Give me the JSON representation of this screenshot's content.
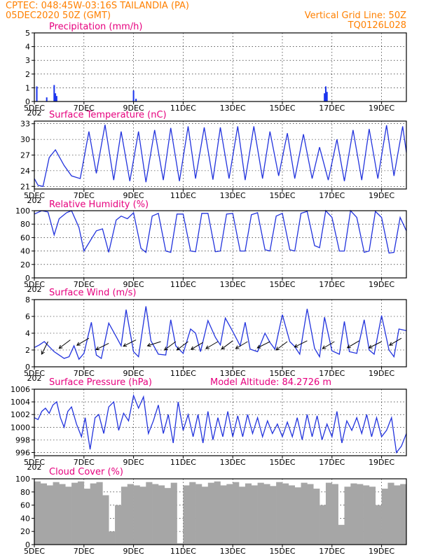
{
  "header": {
    "source_location": "CPTEC:   048:45W-03:16S   TAILANDIA (PA)",
    "run_time": "05DEC2020 50Z (GMT)",
    "grid_note": "Vertical Grid Line: 50Z",
    "code": "TQ0126L028"
  },
  "x_tick_labels": [
    "5DEC",
    "7DEC",
    "9DEC",
    "11DEC",
    "13DEC",
    "15DEC",
    "17DEC",
    "19DEC"
  ],
  "x_tick_days": [
    0,
    2,
    4,
    6,
    8,
    10,
    12,
    14
  ],
  "x_start_stub": "202",
  "colors": {
    "header": "#ff8000",
    "title": "#e6007e",
    "series": "#2233dd",
    "bars": "#1a33ee",
    "cloud": "#a6a6a6"
  },
  "panels": {
    "precipitation": {
      "title": "Precipitation (mm/h)"
    },
    "temperature": {
      "title": "Surface Temperature (nC)"
    },
    "humidity": {
      "title": "Relative Humidity (%)"
    },
    "wind": {
      "title": "Surface Wind (m/s)"
    },
    "pressure": {
      "title": "Surface Pressure (hPa)",
      "altitude": "Model Altitude: 84.2726 m"
    },
    "cloud": {
      "title": "Cloud Cover (%)"
    }
  },
  "chart_data": [
    {
      "type": "bar",
      "name": "precipitation",
      "ylim": [
        0,
        5
      ],
      "yticks": [
        0,
        1,
        2,
        3,
        4,
        5
      ],
      "x": [
        0.1,
        0.5,
        0.8,
        0.85,
        0.9,
        4.0,
        4.1,
        11.7,
        11.75,
        11.8
      ],
      "values": [
        1.1,
        0.3,
        1.2,
        0.6,
        0.4,
        0.8,
        0.2,
        0.6,
        1.1,
        0.7
      ]
    },
    {
      "type": "line",
      "name": "temperature",
      "ylim": [
        20.5,
        33.5
      ],
      "yticks": [
        21,
        24,
        27,
        30,
        33
      ],
      "x": [
        0,
        0.15,
        0.35,
        0.6,
        0.85,
        1.2,
        1.5,
        1.85,
        2.2,
        2.5,
        2.85,
        3.2,
        3.5,
        3.85,
        4.2,
        4.5,
        4.85,
        5.2,
        5.5,
        5.85,
        6.2,
        6.5,
        6.85,
        7.2,
        7.5,
        7.85,
        8.2,
        8.5,
        8.85,
        9.2,
        9.5,
        9.85,
        10.2,
        10.5,
        10.85,
        11.2,
        11.5,
        11.85,
        12.2,
        12.5,
        12.85,
        13.2,
        13.5,
        13.85,
        14.2,
        14.5,
        14.85,
        15.0
      ],
      "values": [
        22.5,
        21.2,
        21.0,
        26.5,
        28.0,
        25.0,
        23.0,
        22.5,
        31.5,
        23.5,
        32.8,
        22.2,
        31.5,
        22.0,
        31.5,
        21.8,
        31.8,
        22.2,
        32.2,
        22.0,
        32.5,
        22.5,
        32.3,
        22.3,
        32.3,
        22.5,
        32.5,
        22.2,
        32.5,
        22.5,
        31.5,
        23.0,
        31.2,
        22.5,
        31.0,
        22.5,
        28.5,
        22.2,
        30.0,
        22.0,
        31.8,
        22.2,
        32.0,
        22.5,
        32.7,
        23.0,
        32.5,
        27.5
      ]
    },
    {
      "type": "line",
      "name": "humidity",
      "ylim": [
        0,
        100
      ],
      "yticks": [
        0,
        20,
        40,
        60,
        80,
        100
      ],
      "x": [
        0,
        0.3,
        0.55,
        0.8,
        1.0,
        1.3,
        1.5,
        1.8,
        2.0,
        2.3,
        2.5,
        2.75,
        3.0,
        3.3,
        3.5,
        3.75,
        4.0,
        4.3,
        4.5,
        4.75,
        5.0,
        5.3,
        5.5,
        5.75,
        6.0,
        6.3,
        6.5,
        6.75,
        7.0,
        7.3,
        7.5,
        7.75,
        8.0,
        8.3,
        8.5,
        8.75,
        9.0,
        9.3,
        9.5,
        9.75,
        10.0,
        10.3,
        10.5,
        10.75,
        11.0,
        11.3,
        11.5,
        11.75,
        12.0,
        12.3,
        12.5,
        12.75,
        13.0,
        13.3,
        13.5,
        13.75,
        14.0,
        14.3,
        14.5,
        14.75,
        15.0
      ],
      "values": [
        95,
        100,
        98,
        64,
        88,
        97,
        100,
        75,
        40,
        58,
        70,
        73,
        38,
        86,
        92,
        88,
        97,
        44,
        38,
        92,
        96,
        40,
        38,
        95,
        95,
        40,
        39,
        96,
        96,
        39,
        40,
        95,
        96,
        40,
        40,
        94,
        97,
        42,
        40,
        92,
        96,
        42,
        40,
        96,
        99,
        48,
        45,
        100,
        90,
        40,
        40,
        100,
        90,
        38,
        40,
        99,
        90,
        37,
        38,
        90,
        70
      ]
    },
    {
      "type": "line",
      "name": "wind",
      "ylim": [
        0,
        8
      ],
      "yticks": [
        0,
        2,
        4,
        6,
        8
      ],
      "x": [
        0,
        0.2,
        0.4,
        0.6,
        0.8,
        1.0,
        1.2,
        1.4,
        1.6,
        1.8,
        2.0,
        2.3,
        2.5,
        2.7,
        3.0,
        3.3,
        3.5,
        3.7,
        4.0,
        4.2,
        4.5,
        4.7,
        5.0,
        5.3,
        5.5,
        5.7,
        6.0,
        6.3,
        6.5,
        6.7,
        7.0,
        7.3,
        7.5,
        7.7,
        8.0,
        8.3,
        8.5,
        8.7,
        9.0,
        9.3,
        9.5,
        9.7,
        10.0,
        10.3,
        10.5,
        10.7,
        11.0,
        11.3,
        11.5,
        11.7,
        12.0,
        12.3,
        12.5,
        12.7,
        13.0,
        13.3,
        13.5,
        13.7,
        14.0,
        14.3,
        14.5,
        14.7,
        15.0
      ],
      "values": [
        2.3,
        2.6,
        3.0,
        2.4,
        1.8,
        1.4,
        1.0,
        1.2,
        2.5,
        0.9,
        1.6,
        5.3,
        1.4,
        1.0,
        5.2,
        3.6,
        2.5,
        6.8,
        1.8,
        1.2,
        7.2,
        3.1,
        1.5,
        1.4,
        5.6,
        2.5,
        1.6,
        4.5,
        4.0,
        1.8,
        5.5,
        3.5,
        2.6,
        5.8,
        4.2,
        2.5,
        5.3,
        2.1,
        1.8,
        4.0,
        2.9,
        2.1,
        6.2,
        3.0,
        2.4,
        1.5,
        6.9,
        2.2,
        1.2,
        5.9,
        1.9,
        1.5,
        5.4,
        1.8,
        1.6,
        5.6,
        2.0,
        1.5,
        6.1,
        2.0,
        1.2,
        4.5,
        4.3
      ],
      "arrows": [
        {
          "x": 0.55,
          "speed": 3.0,
          "dx": -0.45,
          "dy": -0.9
        },
        {
          "x": 1.45,
          "speed": 3.2,
          "dx": -0.8,
          "dy": -0.6
        },
        {
          "x": 2.2,
          "speed": 3.4,
          "dx": -0.85,
          "dy": -0.5
        },
        {
          "x": 3.0,
          "speed": 2.8,
          "dx": -0.9,
          "dy": -0.45
        },
        {
          "x": 4.1,
          "speed": 3.2,
          "dx": -0.9,
          "dy": -0.45
        },
        {
          "x": 5.1,
          "speed": 3.0,
          "dx": -0.95,
          "dy": -0.3
        },
        {
          "x": 5.7,
          "speed": 3.0,
          "dx": -0.8,
          "dy": -0.6
        },
        {
          "x": 6.2,
          "speed": 3.0,
          "dx": -0.8,
          "dy": -0.6
        },
        {
          "x": 6.8,
          "speed": 2.9,
          "dx": -0.85,
          "dy": -0.5
        },
        {
          "x": 7.4,
          "speed": 3.0,
          "dx": -0.85,
          "dy": -0.5
        },
        {
          "x": 8.0,
          "speed": 3.1,
          "dx": -0.8,
          "dy": -0.6
        },
        {
          "x": 8.6,
          "speed": 3.0,
          "dx": -0.85,
          "dy": -0.5
        },
        {
          "x": 9.5,
          "speed": 3.0,
          "dx": -0.9,
          "dy": -0.45
        },
        {
          "x": 10.2,
          "speed": 3.0,
          "dx": -0.8,
          "dy": -0.6
        },
        {
          "x": 11.0,
          "speed": 3.1,
          "dx": -0.9,
          "dy": -0.45
        },
        {
          "x": 12.1,
          "speed": 3.0,
          "dx": -0.85,
          "dy": -0.5
        },
        {
          "x": 13.1,
          "speed": 3.1,
          "dx": -0.85,
          "dy": -0.5
        },
        {
          "x": 14.0,
          "speed": 3.0,
          "dx": -0.9,
          "dy": -0.45
        },
        {
          "x": 14.8,
          "speed": 3.4,
          "dx": -0.85,
          "dy": -0.5
        }
      ]
    },
    {
      "type": "line",
      "name": "pressure",
      "ylim": [
        995.5,
        1006
      ],
      "yticks": [
        996,
        998,
        1000,
        1002,
        1004,
        1006
      ],
      "x": [
        0,
        0.15,
        0.3,
        0.45,
        0.6,
        0.75,
        0.9,
        1.05,
        1.2,
        1.35,
        1.5,
        1.7,
        1.9,
        2.05,
        2.25,
        2.45,
        2.6,
        2.8,
        3.0,
        3.2,
        3.4,
        3.6,
        3.8,
        4.0,
        4.2,
        4.4,
        4.6,
        4.8,
        5.0,
        5.2,
        5.4,
        5.6,
        5.8,
        6.0,
        6.2,
        6.4,
        6.6,
        6.8,
        7.0,
        7.2,
        7.4,
        7.6,
        7.8,
        8.0,
        8.2,
        8.4,
        8.6,
        8.8,
        9.0,
        9.2,
        9.4,
        9.6,
        9.8,
        10.0,
        10.2,
        10.4,
        10.6,
        10.8,
        11.0,
        11.2,
        11.4,
        11.6,
        11.8,
        12.0,
        12.2,
        12.4,
        12.6,
        12.8,
        13.0,
        13.2,
        13.4,
        13.6,
        13.8,
        14.0,
        14.2,
        14.4,
        14.6,
        14.8,
        15.0
      ],
      "values": [
        1001.5,
        1001.2,
        1002.5,
        1003.0,
        1002.2,
        1003.5,
        1004.0,
        1001.5,
        1000.0,
        1002.5,
        1003.2,
        1000.5,
        998.5,
        1001.5,
        996.5,
        1001.5,
        1002.0,
        999.0,
        1003.2,
        1004.0,
        999.5,
        1002.2,
        1001.0,
        1005.0,
        1003.0,
        1004.8,
        999.0,
        1001.0,
        1003.5,
        999.0,
        1002.0,
        997.5,
        1004.0,
        999.5,
        1002.0,
        998.5,
        1002.0,
        997.5,
        1002.5,
        998.0,
        1001.5,
        998.5,
        1002.5,
        998.5,
        1001.8,
        998.5,
        1002.0,
        999.0,
        1001.5,
        998.5,
        1001.0,
        999.0,
        1000.5,
        998.5,
        1000.8,
        998.5,
        1001.5,
        998.0,
        1002.0,
        998.5,
        1001.8,
        998.0,
        1000.5,
        998.5,
        1002.5,
        997.5,
        1001.0,
        999.5,
        1001.5,
        999.0,
        1002.0,
        998.5,
        1001.5,
        998.5,
        999.5,
        1001.5,
        996.0,
        997.0,
        999.0
      ]
    },
    {
      "type": "bar",
      "name": "cloud_cover",
      "ylim": [
        0,
        100
      ],
      "yticks": [
        0,
        20,
        40,
        60,
        80,
        100
      ],
      "x": [
        0,
        0.25,
        0.5,
        0.75,
        1.0,
        1.25,
        1.5,
        1.75,
        2.0,
        2.25,
        2.5,
        2.75,
        3.0,
        3.25,
        3.5,
        3.75,
        4.0,
        4.25,
        4.5,
        4.75,
        5.0,
        5.25,
        5.5,
        5.75,
        6.0,
        6.25,
        6.5,
        6.75,
        7.0,
        7.25,
        7.5,
        7.75,
        8.0,
        8.25,
        8.5,
        8.75,
        9.0,
        9.25,
        9.5,
        9.75,
        10.0,
        10.25,
        10.5,
        10.75,
        11.0,
        11.25,
        11.5,
        11.75,
        12.0,
        12.25,
        12.5,
        12.75,
        13.0,
        13.25,
        13.5,
        13.75,
        14.0,
        14.25,
        14.5,
        14.75
      ],
      "values": [
        96,
        93,
        90,
        95,
        92,
        88,
        94,
        96,
        85,
        93,
        95,
        75,
        20,
        60,
        88,
        92,
        90,
        88,
        95,
        92,
        90,
        86,
        94,
        2,
        90,
        95,
        92,
        88,
        94,
        96,
        90,
        92,
        95,
        88,
        93,
        90,
        94,
        92,
        89,
        95,
        93,
        90,
        87,
        94,
        92,
        85,
        60,
        94,
        92,
        30,
        88,
        93,
        92,
        90,
        88,
        60,
        85,
        94,
        90,
        92
      ]
    }
  ]
}
